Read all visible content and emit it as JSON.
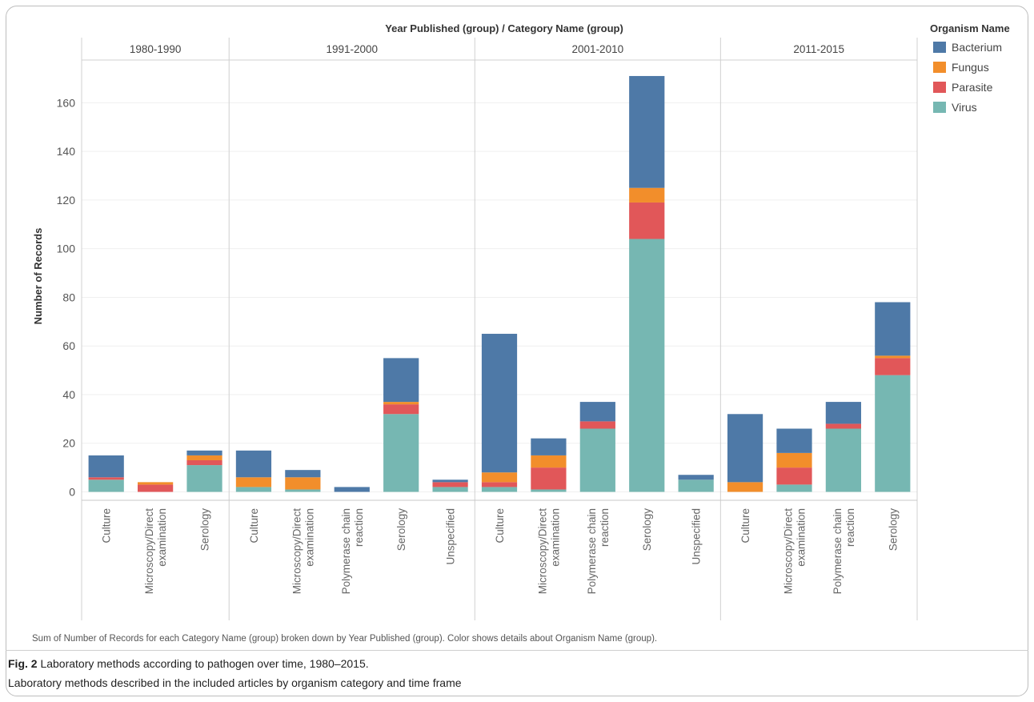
{
  "chart_data": {
    "type": "bar",
    "stacked": true,
    "title": "Year Published (group) / Category Name (group)",
    "ylabel": "Number of Records",
    "ylim": [
      -3,
      172
    ],
    "yticks": [
      0,
      20,
      40,
      60,
      80,
      100,
      120,
      140,
      160
    ],
    "grid": "horizontal",
    "legend": {
      "title": "Organism Name",
      "position": "top-right",
      "items": [
        {
          "name": "Bacterium",
          "color": "#4e79a7"
        },
        {
          "name": "Fungus",
          "color": "#f28e2b"
        },
        {
          "name": "Parasite",
          "color": "#e15759"
        },
        {
          "name": "Virus",
          "color": "#76b7b2"
        }
      ]
    },
    "stack_order": [
      "Virus",
      "Parasite",
      "Fungus",
      "Bacterium"
    ],
    "groups": [
      {
        "label": "1980-1990",
        "bars": [
          {
            "category": "Culture",
            "Virus": 5,
            "Parasite": 1,
            "Fungus": 0,
            "Bacterium": 9
          },
          {
            "category": "Microscopy/Direct examination",
            "Virus": 0,
            "Parasite": 3,
            "Fungus": 1,
            "Bacterium": 0
          },
          {
            "category": "Serology",
            "Virus": 11,
            "Parasite": 2,
            "Fungus": 2,
            "Bacterium": 2
          }
        ]
      },
      {
        "label": "1991-2000",
        "bars": [
          {
            "category": "Culture",
            "Virus": 2,
            "Parasite": 0,
            "Fungus": 4,
            "Bacterium": 11
          },
          {
            "category": "Microscopy/Direct examination",
            "Virus": 1,
            "Parasite": 0,
            "Fungus": 5,
            "Bacterium": 3
          },
          {
            "category": "Polymerase chain reaction",
            "Virus": 0,
            "Parasite": 0,
            "Fungus": 0,
            "Bacterium": 2
          },
          {
            "category": "Serology",
            "Virus": 32,
            "Parasite": 4,
            "Fungus": 1,
            "Bacterium": 18
          },
          {
            "category": "Unspecified",
            "Virus": 2,
            "Parasite": 2,
            "Fungus": 0,
            "Bacterium": 1
          }
        ]
      },
      {
        "label": "2001-2010",
        "bars": [
          {
            "category": "Culture",
            "Virus": 2,
            "Parasite": 2,
            "Fungus": 4,
            "Bacterium": 57
          },
          {
            "category": "Microscopy/Direct examination",
            "Virus": 1,
            "Parasite": 9,
            "Fungus": 5,
            "Bacterium": 7
          },
          {
            "category": "Polymerase chain reaction",
            "Virus": 26,
            "Parasite": 3,
            "Fungus": 0,
            "Bacterium": 8
          },
          {
            "category": "Serology",
            "Virus": 104,
            "Parasite": 15,
            "Fungus": 6,
            "Bacterium": 46
          },
          {
            "category": "Unspecified",
            "Virus": 5,
            "Parasite": 0,
            "Fungus": 0,
            "Bacterium": 2
          }
        ]
      },
      {
        "label": "2011-2015",
        "bars": [
          {
            "category": "Culture",
            "Virus": 0,
            "Parasite": 0,
            "Fungus": 4,
            "Bacterium": 28
          },
          {
            "category": "Microscopy/Direct examination",
            "Virus": 3,
            "Parasite": 7,
            "Fungus": 6,
            "Bacterium": 10
          },
          {
            "category": "Polymerase chain reaction",
            "Virus": 26,
            "Parasite": 2,
            "Fungus": 0,
            "Bacterium": 9
          },
          {
            "category": "Serology",
            "Virus": 48,
            "Parasite": 7,
            "Fungus": 1,
            "Bacterium": 22
          }
        ]
      }
    ]
  },
  "footnote": "Sum of Number of Records for each Category Name (group) broken down by Year Published (group).  Color shows details about Organism Name (group).",
  "caption": {
    "fig_label": "Fig. 2",
    "title": "Laboratory methods according to pathogen over time, 1980–2015.",
    "description": "Laboratory methods described in the included articles by organism category and time frame"
  }
}
